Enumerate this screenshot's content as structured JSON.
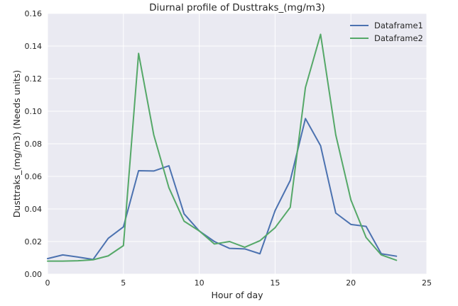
{
  "chart_data": {
    "type": "line",
    "title": "Diurnal profile of Dusttraks_(mg/m3)",
    "xlabel": "Hour of day",
    "ylabel": "Dusttraks_(mg/m3) (Needs units)",
    "xlim": [
      0,
      25
    ],
    "ylim": [
      0,
      0.16
    ],
    "x_ticks": [
      0,
      5,
      10,
      15,
      20,
      25
    ],
    "y_ticks": [
      0.0,
      0.02,
      0.04,
      0.06,
      0.08,
      0.1,
      0.12,
      0.14,
      0.16
    ],
    "x_tick_labels": [
      "0",
      "5",
      "10",
      "15",
      "20",
      "25"
    ],
    "y_tick_labels": [
      "0.00",
      "0.02",
      "0.04",
      "0.06",
      "0.08",
      "0.10",
      "0.12",
      "0.14",
      "0.16"
    ],
    "grid": true,
    "legend_position": "top-right",
    "x": [
      0,
      1,
      2,
      3,
      4,
      5,
      6,
      7,
      8,
      9,
      10,
      11,
      12,
      13,
      14,
      15,
      16,
      17,
      18,
      19,
      20,
      21,
      22,
      23
    ],
    "series": [
      {
        "name": "Dataframe1",
        "color": "#4c72b0",
        "values": [
          0.0095,
          0.0118,
          0.0105,
          0.009,
          0.022,
          0.029,
          0.0635,
          0.0633,
          0.0665,
          0.037,
          0.0265,
          0.02,
          0.0158,
          0.0155,
          0.0125,
          0.039,
          0.0575,
          0.0955,
          0.0788,
          0.0375,
          0.0305,
          0.0293,
          0.0125,
          0.011
        ]
      },
      {
        "name": "Dataframe2",
        "color": "#55a868",
        "values": [
          0.008,
          0.008,
          0.0082,
          0.0088,
          0.0112,
          0.0175,
          0.1355,
          0.0855,
          0.053,
          0.0325,
          0.0265,
          0.0185,
          0.02,
          0.0165,
          0.0205,
          0.0285,
          0.041,
          0.1145,
          0.1472,
          0.0855,
          0.0455,
          0.0225,
          0.0118,
          0.0085
        ]
      }
    ]
  }
}
